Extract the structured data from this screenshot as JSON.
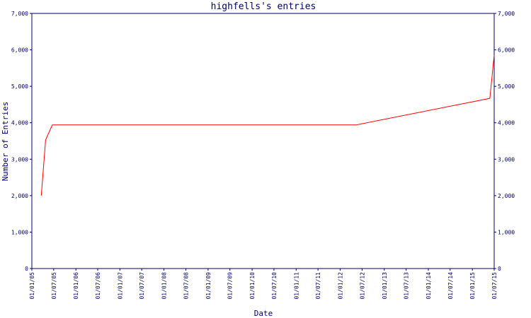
{
  "chart_data": {
    "type": "line",
    "title": "highfells's entries",
    "xlabel": "Date",
    "ylabel": "Number of Entries",
    "x": [
      "20/03/05",
      "25/04/05",
      "20/06/05",
      "12/05/12",
      "26/05/15",
      "01/07/15"
    ],
    "series": [
      {
        "color": "#ff0000",
        "values": [
          2000,
          3530,
          3940,
          3940,
          4670,
          5860
        ]
      }
    ],
    "xlim": [
      "01/01/05",
      "01/07/15"
    ],
    "xticks": [
      "01/01/05",
      "01/07/05",
      "01/01/06",
      "01/07/06",
      "01/01/07",
      "01/07/07",
      "01/01/08",
      "01/07/08",
      "01/01/09",
      "01/07/09",
      "01/01/10",
      "01/07/10",
      "01/01/11",
      "01/07/11",
      "01/01/12",
      "01/07/12",
      "01/01/13",
      "01/07/13",
      "01/01/14",
      "01/07/14",
      "01/01/15",
      "01/07/15"
    ],
    "ylim": [
      0,
      7000
    ],
    "yticks": [
      0,
      {
        "value": 1000,
        "label": "1,000"
      },
      {
        "value": 2000,
        "label": "2,000"
      },
      {
        "value": 3000,
        "label": "3,000"
      },
      {
        "value": 4000,
        "label": "4,000"
      },
      {
        "value": 5000,
        "label": "5,000"
      },
      {
        "value": 6000,
        "label": "6,000"
      },
      {
        "value": 7000,
        "label": "7,000"
      }
    ],
    "right_axis": true
  }
}
